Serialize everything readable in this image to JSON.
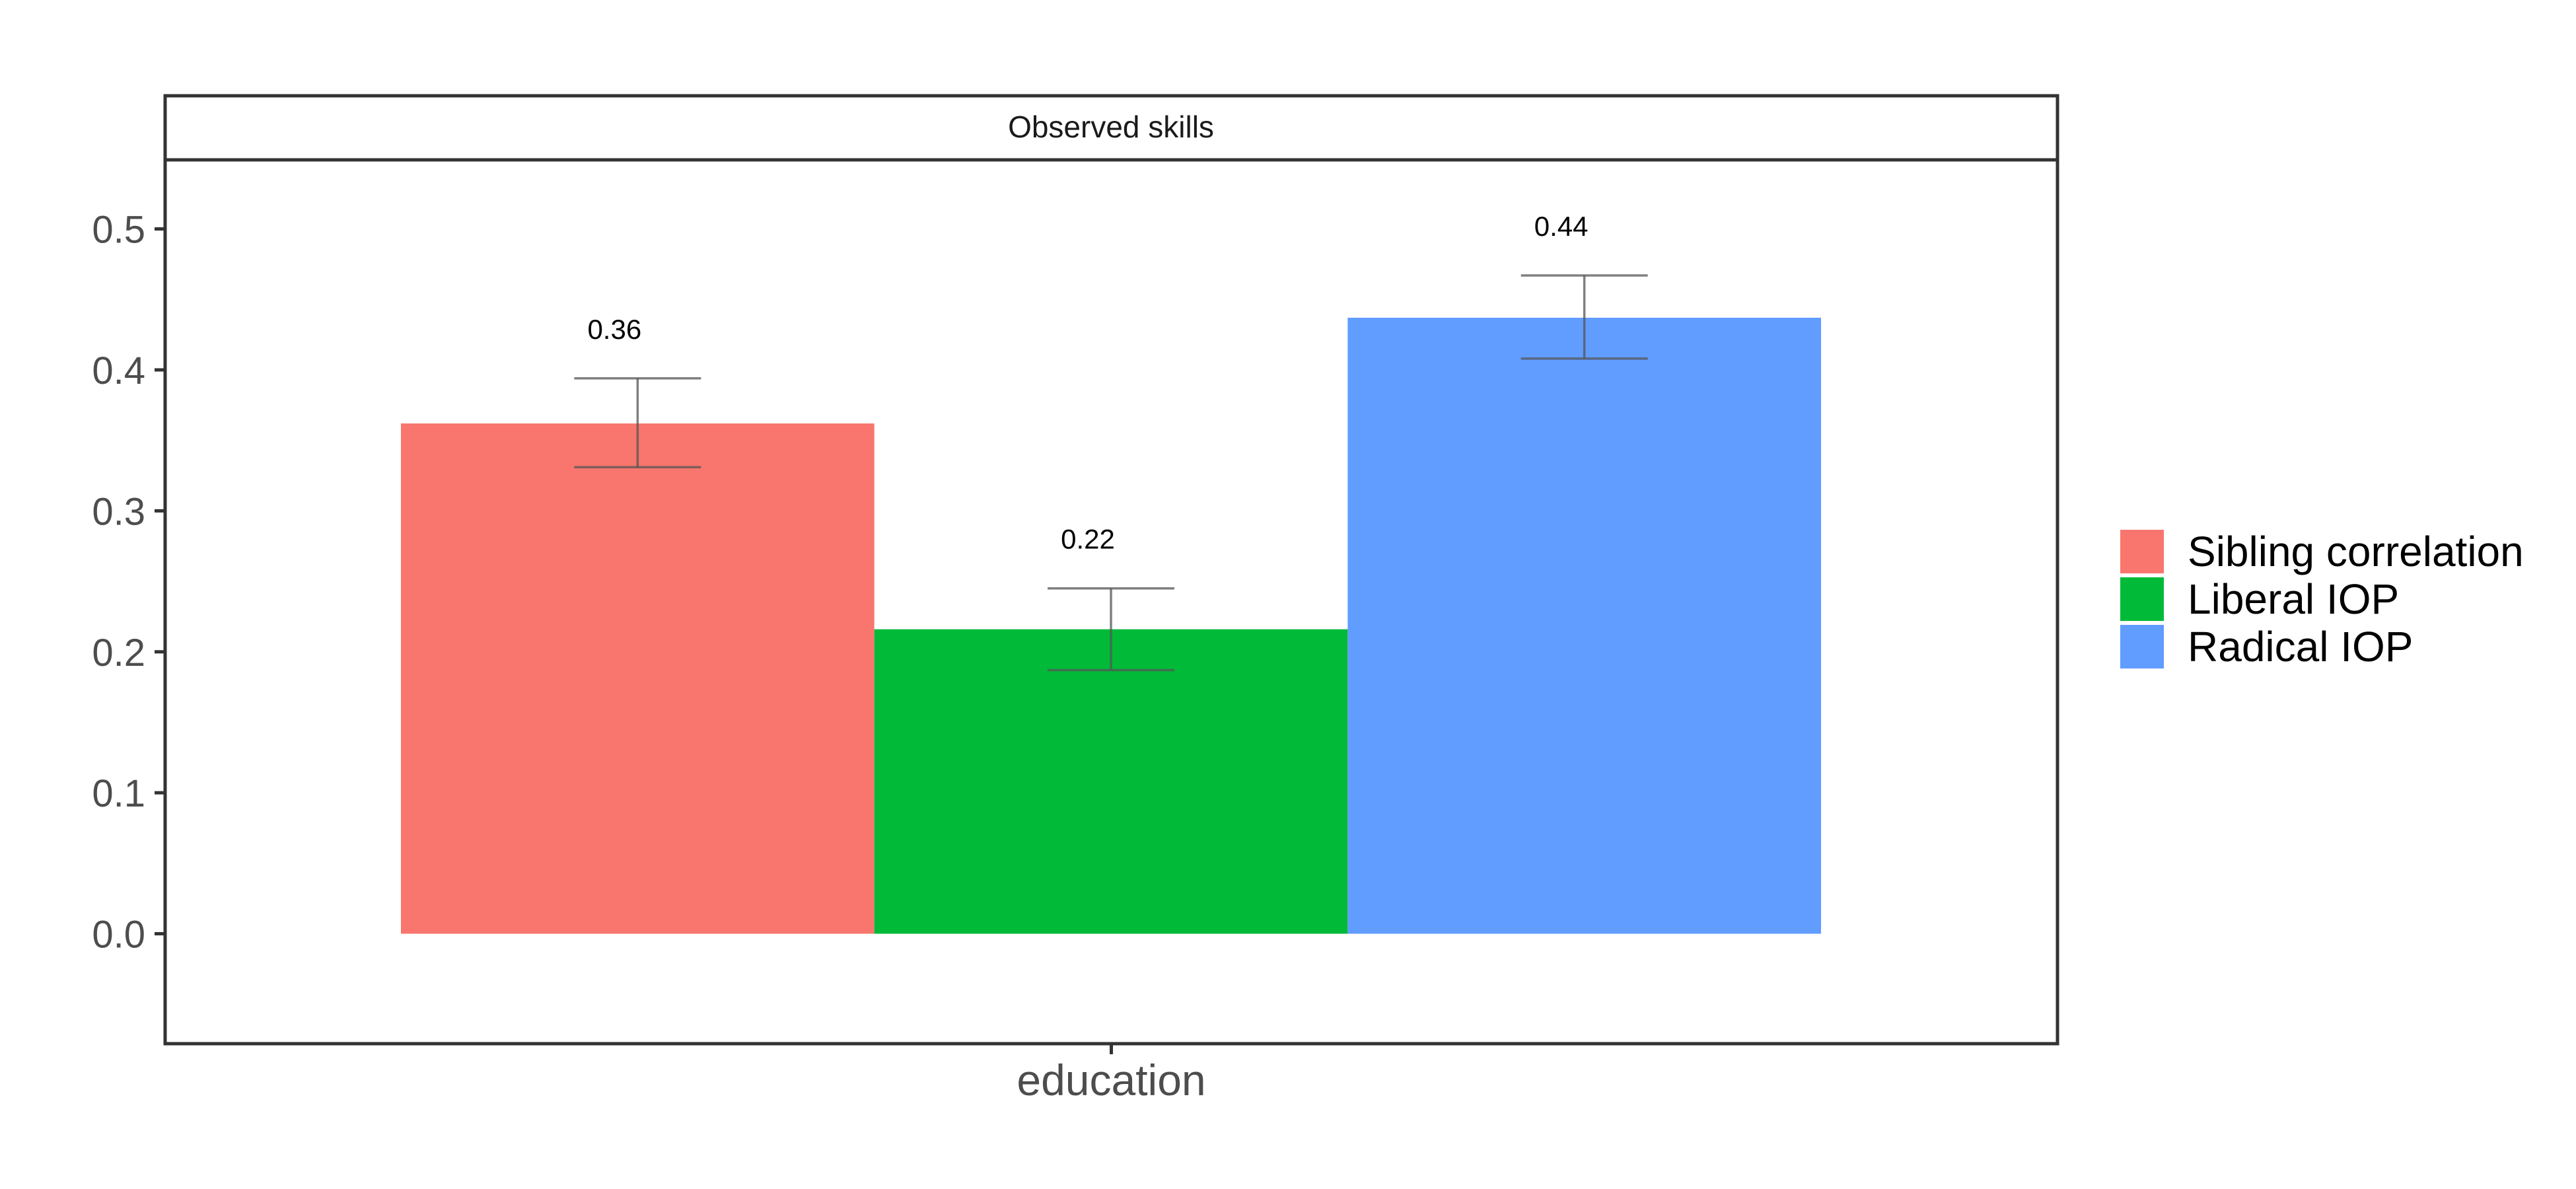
{
  "chart_data": {
    "type": "bar",
    "facet_title": "Observed skills",
    "categories": [
      "education"
    ],
    "series": [
      {
        "name": "Sibling correlation",
        "color": "#F8766D",
        "value": 0.362,
        "ci_low": 0.331,
        "ci_high": 0.394,
        "label": "0.36"
      },
      {
        "name": "Liberal IOP",
        "color": "#00BA38",
        "value": 0.216,
        "ci_low": 0.187,
        "ci_high": 0.245,
        "label": "0.22"
      },
      {
        "name": "Radical IOP",
        "color": "#619CFF",
        "value": 0.437,
        "ci_low": 0.408,
        "ci_high": 0.467,
        "label": "0.44"
      }
    ],
    "y_ticks": [
      {
        "value": 0.0,
        "label": "0.0"
      },
      {
        "value": 0.1,
        "label": "0.1"
      },
      {
        "value": 0.2,
        "label": "0.2"
      },
      {
        "value": 0.3,
        "label": "0.3"
      },
      {
        "value": 0.4,
        "label": "0.4"
      },
      {
        "value": 0.5,
        "label": "0.5"
      }
    ],
    "ylim": [
      -0.078,
      0.549
    ],
    "xlabel": "",
    "ylabel": "",
    "grid": false,
    "legend_position": "right"
  }
}
